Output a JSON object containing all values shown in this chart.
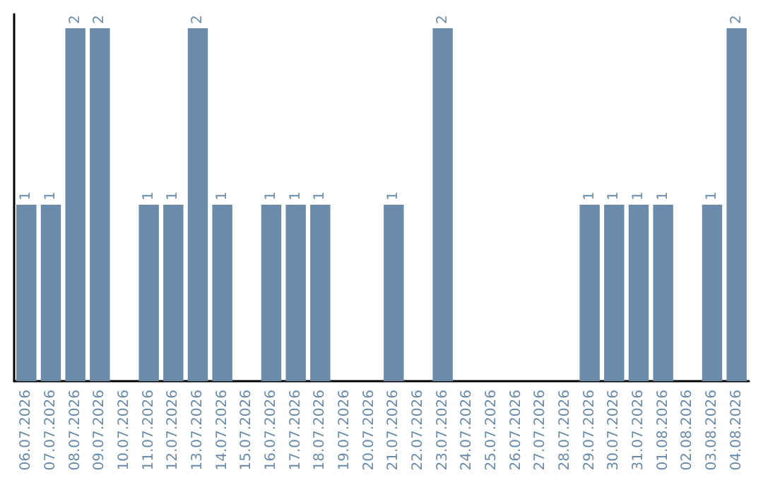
{
  "chart_data": {
    "type": "bar",
    "categories": [
      "06.07.2026",
      "07.07.2026",
      "08.07.2026",
      "09.07.2026",
      "10.07.2026",
      "11.07.2026",
      "12.07.2026",
      "13.07.2026",
      "14.07.2026",
      "15.07.2026",
      "16.07.2026",
      "17.07.2026",
      "18.07.2026",
      "19.07.2026",
      "20.07.2026",
      "21.07.2026",
      "22.07.2026",
      "23.07.2026",
      "24.07.2026",
      "25.07.2026",
      "26.07.2026",
      "27.07.2026",
      "28.07.2026",
      "29.07.2026",
      "30.07.2026",
      "31.07.2026",
      "01.08.2026",
      "02.08.2026",
      "03.08.2026",
      "04.08.2026"
    ],
    "values": [
      1,
      1,
      2,
      2,
      0,
      1,
      1,
      2,
      1,
      0,
      1,
      1,
      1,
      0,
      0,
      1,
      0,
      2,
      0,
      0,
      0,
      0,
      0,
      1,
      1,
      1,
      1,
      0,
      1,
      2
    ],
    "value_labels": [
      "1",
      "1",
      "2",
      "2",
      null,
      "1",
      "1",
      "2",
      "1",
      null,
      "1",
      "1",
      "1",
      null,
      null,
      "1",
      null,
      "2",
      null,
      null,
      null,
      null,
      null,
      "1",
      "1",
      "1",
      "1",
      null,
      "1",
      "2"
    ],
    "color": "#6a8caa",
    "ylim": [
      0,
      2.08
    ],
    "tick_labels": "x"
  }
}
